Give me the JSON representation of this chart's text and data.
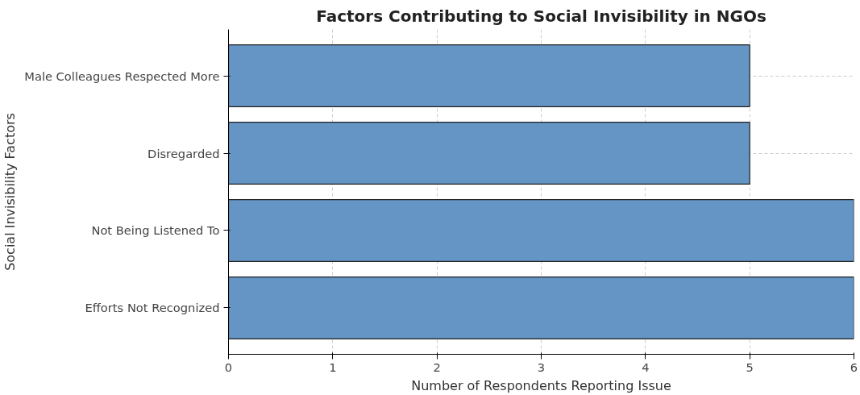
{
  "chart_data": {
    "type": "bar",
    "orientation": "horizontal",
    "title": "Factors Contributing to Social Invisibility in NGOs",
    "xlabel": "Number of Respondents Reporting Issue",
    "ylabel": "Social Invisibility Factors",
    "categories": [
      "Male Colleagues Respected More",
      "Disregarded",
      "Not Being Listened To",
      "Efforts Not Recognized"
    ],
    "values": [
      5,
      5,
      6,
      6
    ],
    "color": "#6495c4",
    "xlim": [
      0,
      6
    ],
    "xticks": [
      0,
      1,
      2,
      3,
      4,
      5,
      6
    ],
    "grid": true
  }
}
